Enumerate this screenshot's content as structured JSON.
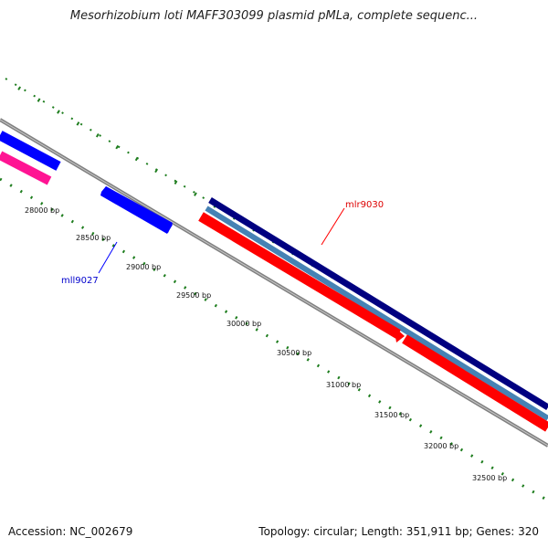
{
  "title": "Mesorhizobium loti MAFF303099 plasmid pMLa, complete sequenc...",
  "footer": {
    "accession": "Accession: NC_002679",
    "summary": "Topology: circular; Length: 351,911 bp; Genes: 320"
  },
  "scale": {
    "labels": [
      "28000 bp",
      "28500 bp",
      "29000 bp",
      "29500 bp",
      "30000 bp",
      "30500 bp",
      "31000 bp",
      "31500 bp",
      "32000 bp",
      "32500 bp"
    ]
  },
  "genes": [
    {
      "name": "mll9027",
      "strand": "reverse",
      "color": "#0000ff"
    },
    {
      "name": "mlr9030",
      "strand": "forward",
      "color": "#ff0000"
    }
  ],
  "colors": {
    "backbone": "#808080",
    "ticks": "#1e7d1e",
    "reverse_cds": "#0000ff",
    "forward_cds": "#ff0000",
    "pink_feature": "#ff1493",
    "navy_track": "#000080",
    "steelblue_track": "#4682b4"
  }
}
